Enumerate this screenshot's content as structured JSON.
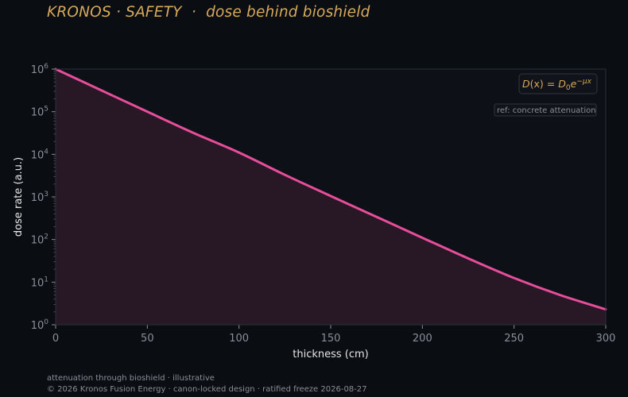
{
  "title": "KRONOS · SAFETY  ·  dose behind bioshield",
  "footer": {
    "line1": "attenuation through bioshield · illustrative",
    "line2": "© 2026 Kronos Fusion Energy · canon-locked design · ratified freeze 2026-08-27"
  },
  "colors": {
    "background": "#0a0d12",
    "plot_background": "#0d1017",
    "title": "#d7a95b",
    "curve": "#e64d9b",
    "fill": "#281725",
    "muted_text": "#8a8f98",
    "axis_text": "#e6e6e6"
  },
  "chart_data": {
    "type": "area",
    "title": "KRONOS · SAFETY  ·  dose behind bioshield",
    "xlabel": "thickness (cm)",
    "ylabel": "dose rate (a.u.)",
    "xlim": [
      0,
      300
    ],
    "ylim": [
      1,
      1000000
    ],
    "yscale": "log",
    "grid": false,
    "x_ticks": [
      0,
      50,
      100,
      150,
      200,
      250,
      300
    ],
    "y_tick_exponents": [
      0,
      1,
      2,
      3,
      4,
      5,
      6
    ],
    "series": [
      {
        "x": [
          0,
          25,
          50,
          75,
          100,
          125,
          150,
          175,
          200,
          225,
          250,
          275,
          300
        ],
        "y": [
          1000000,
          316000,
          100000,
          32000,
          11000,
          3300,
          1050,
          340,
          110,
          36,
          12.5,
          5,
          2.3
        ]
      }
    ],
    "annotations": {
      "formula": {
        "lhs": "D",
        "arg": "(x) = ",
        "rhs": "D",
        "sub": "0",
        "e": "e",
        "exp": "−μx"
      },
      "ref_label": "ref: concrete attenuation"
    }
  }
}
